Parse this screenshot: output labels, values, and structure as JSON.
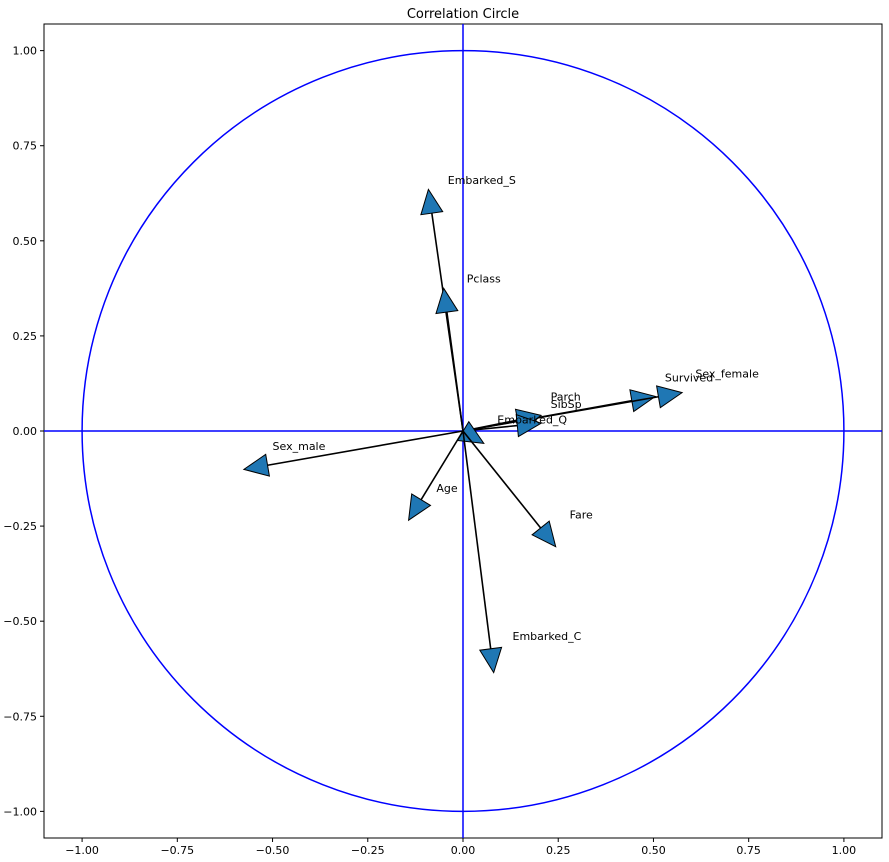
{
  "chart_data": {
    "type": "scatter",
    "title": "Correlation Circle",
    "xlabel": "",
    "ylabel": "",
    "xlim": [
      -1.1,
      1.1
    ],
    "ylim": [
      -1.07,
      1.07
    ],
    "xticks": [
      -1.0,
      -0.75,
      -0.5,
      -0.25,
      0.0,
      0.25,
      0.5,
      0.75,
      1.0
    ],
    "yticks": [
      -1.0,
      -0.75,
      -0.5,
      -0.25,
      0.0,
      0.25,
      0.5,
      0.75,
      1.0
    ],
    "xtick_labels": [
      "−1.00",
      "−0.75",
      "−0.50",
      "−0.25",
      "0.00",
      "0.25",
      "0.50",
      "0.75",
      "1.00"
    ],
    "ytick_labels": [
      "−1.00",
      "−0.75",
      "−0.50",
      "−0.25",
      "0.00",
      "0.25",
      "0.50",
      "0.75",
      "1.00"
    ],
    "grid": false,
    "circle_radius": 1.0,
    "colors": {
      "circle": "#0000ff",
      "axes": "#0000ff",
      "arrow_fill": "#1f77b4",
      "arrow_edge": "#000000",
      "shaft": "#000000"
    },
    "vectors": [
      {
        "name": "Embarked_S",
        "x": -0.09,
        "y": 0.63,
        "label_x": -0.04,
        "label_y": 0.65
      },
      {
        "name": "Pclass",
        "x": -0.05,
        "y": 0.37,
        "label_x": 0.01,
        "label_y": 0.39
      },
      {
        "name": "Survived",
        "x": 0.5,
        "y": 0.09,
        "label_x": 0.53,
        "label_y": 0.13
      },
      {
        "name": "Sex_female",
        "x": 0.57,
        "y": 0.1,
        "label_x": 0.61,
        "label_y": 0.14
      },
      {
        "name": "Parch",
        "x": 0.2,
        "y": 0.04,
        "label_x": 0.23,
        "label_y": 0.08
      },
      {
        "name": "SibSp",
        "x": 0.2,
        "y": 0.02,
        "label_x": 0.23,
        "label_y": 0.06
      },
      {
        "name": "Embarked_Q",
        "x": 0.05,
        "y": -0.03,
        "label_x": 0.09,
        "label_y": 0.02
      },
      {
        "name": "Sex_male",
        "x": -0.57,
        "y": -0.1,
        "label_x": -0.5,
        "label_y": -0.05
      },
      {
        "name": "Age",
        "x": -0.14,
        "y": -0.23,
        "label_x": -0.07,
        "label_y": -0.16
      },
      {
        "name": "Fare",
        "x": 0.24,
        "y": -0.3,
        "label_x": 0.28,
        "label_y": -0.23
      },
      {
        "name": "Embarked_C",
        "x": 0.08,
        "y": -0.63,
        "label_x": 0.13,
        "label_y": -0.55
      }
    ]
  }
}
